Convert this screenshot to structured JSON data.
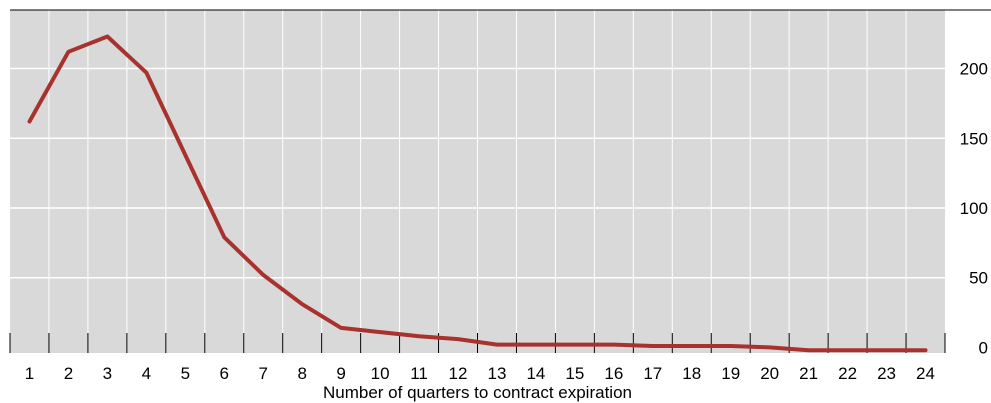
{
  "chart_data": {
    "type": "line",
    "title": "",
    "xlabel": "Number of quarters to contract expiration",
    "ylabel": "",
    "categories": [
      "1",
      "2",
      "3",
      "4",
      "5",
      "6",
      "7",
      "8",
      "9",
      "10",
      "11",
      "12",
      "13",
      "14",
      "15",
      "16",
      "17",
      "18",
      "19",
      "20",
      "21",
      "22",
      "23",
      "24"
    ],
    "series": [
      {
        "values": [
          162,
          212,
          223,
          197,
          138,
          79,
          52,
          31,
          14,
          11,
          8,
          6,
          2,
          2,
          2,
          2,
          1,
          1,
          1,
          0,
          -2,
          -2,
          -2,
          -2
        ]
      }
    ],
    "ylim": [
      -4,
      242
    ],
    "yticks": [
      0,
      50,
      100,
      150,
      200
    ],
    "y_axis_position": "right",
    "grid": true,
    "colors": {
      "line": "#a8322d",
      "plot_background": "#d9d9d9",
      "grid": "#ffffff"
    }
  }
}
